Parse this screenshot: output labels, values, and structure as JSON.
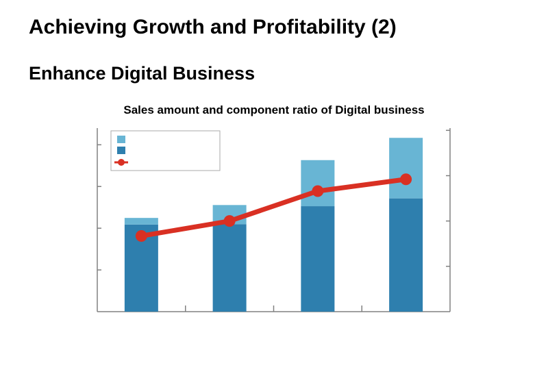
{
  "slide": {
    "title": "Achieving Growth and Profitability (2)",
    "subtitle": "Enhance Digital Business"
  },
  "chart_data": {
    "type": "bar",
    "stacked": true,
    "title": "Sales amount and component ratio of Digital business",
    "categories": [
      "",
      "",
      "",
      ""
    ],
    "series": [
      {
        "kind": "bar",
        "values": [
          223,
          224,
          270,
          290
        ],
        "color": "#2e7fae"
      },
      {
        "kind": "bar",
        "values": [
          17,
          49,
          118,
          155
        ],
        "color": "#68b5d4"
      },
      {
        "kind": "line",
        "axis": "right",
        "values": [
          1.67,
          2.0,
          2.66,
          2.92
        ],
        "color": "#d93023"
      }
    ],
    "ylim": [
      0,
      470
    ],
    "y2lim": [
      0,
      4.05
    ],
    "grid": false,
    "legend": "top-left"
  }
}
